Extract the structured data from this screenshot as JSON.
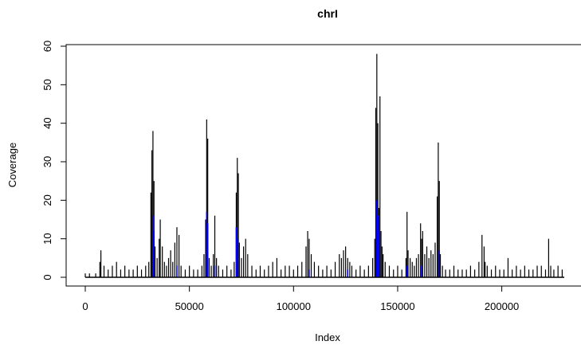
{
  "chart_data": {
    "type": "line",
    "title": "chrI",
    "xlabel": "Index",
    "ylabel": "Coverage",
    "xlim": [
      0,
      230000
    ],
    "ylim": [
      0,
      60
    ],
    "x_ticks": [
      0,
      50000,
      100000,
      150000,
      200000
    ],
    "y_ticks": [
      0,
      10,
      20,
      30,
      40,
      50,
      60
    ],
    "x_tick_labels": [
      "0",
      "50000",
      "100000",
      "150000",
      "200000"
    ],
    "y_tick_labels": [
      "0",
      "10",
      "20",
      "30",
      "40",
      "50",
      "60"
    ],
    "grid": false,
    "series": [
      {
        "color": "#000000",
        "style": "vertical-spikes",
        "x": [
          0,
          2000,
          5000,
          7000,
          7500,
          9000,
          11000,
          13000,
          15000,
          17000,
          19000,
          21000,
          23000,
          25000,
          27000,
          29000,
          30500,
          31500,
          32000,
          32500,
          33000,
          33500,
          34500,
          35500,
          36000,
          37000,
          38000,
          39000,
          40000,
          41000,
          42000,
          43000,
          44000,
          45000,
          46000,
          48000,
          50000,
          52000,
          54000,
          56000,
          57000,
          57800,
          58300,
          58800,
          59500,
          60500,
          61500,
          62200,
          63000,
          64000,
          66000,
          68000,
          70000,
          71500,
          72500,
          73000,
          73500,
          74000,
          75000,
          76000,
          77000,
          78000,
          80000,
          82000,
          84000,
          86000,
          88000,
          90000,
          92000,
          94000,
          96000,
          98000,
          100000,
          102000,
          104000,
          106000,
          106800,
          107500,
          108500,
          110000,
          112000,
          114000,
          116000,
          118000,
          120000,
          122000,
          123000,
          124000,
          125000,
          126000,
          127000,
          128000,
          130000,
          132000,
          134000,
          136000,
          138000,
          139000,
          139500,
          140000,
          140500,
          141000,
          141500,
          142000,
          142500,
          143000,
          144000,
          146000,
          148000,
          150000,
          152000,
          154000,
          154500,
          155000,
          156000,
          157000,
          158000,
          159000,
          160000,
          161000,
          161500,
          162000,
          163000,
          164000,
          165000,
          166000,
          167000,
          168000,
          169000,
          169500,
          170000,
          170500,
          171500,
          173000,
          175000,
          177000,
          179000,
          181000,
          183000,
          185000,
          187000,
          189000,
          190500,
          191500,
          192000,
          193000,
          195000,
          197000,
          199000,
          201000,
          203000,
          205000,
          207000,
          209000,
          211000,
          213000,
          215000,
          217000,
          219000,
          221000,
          222500,
          223500,
          225000,
          227000,
          229000
        ],
        "values": [
          1,
          1,
          1,
          4,
          7,
          3,
          2,
          3,
          4,
          2,
          3,
          2,
          2,
          3,
          2,
          3,
          4,
          22,
          33,
          38,
          25,
          8,
          5,
          10,
          15,
          8,
          4,
          3,
          5,
          7,
          4,
          9,
          13,
          11,
          3,
          2,
          3,
          2,
          2,
          3,
          6,
          15,
          41,
          36,
          5,
          3,
          6,
          16,
          5,
          3,
          2,
          3,
          2,
          4,
          22,
          31,
          27,
          9,
          5,
          8,
          10,
          6,
          3,
          2,
          3,
          2,
          3,
          4,
          5,
          2,
          3,
          3,
          2,
          3,
          4,
          8,
          12,
          10,
          6,
          4,
          3,
          2,
          3,
          2,
          4,
          6,
          5,
          7,
          8,
          5,
          4,
          3,
          2,
          3,
          2,
          3,
          5,
          10,
          44,
          58,
          40,
          18,
          47,
          12,
          8,
          6,
          4,
          3,
          2,
          3,
          2,
          5,
          17,
          7,
          5,
          4,
          3,
          5,
          6,
          14,
          10,
          12,
          6,
          8,
          5,
          7,
          6,
          9,
          21,
          35,
          25,
          6,
          3,
          2,
          2,
          3,
          2,
          2,
          2,
          3,
          2,
          4,
          11,
          8,
          4,
          3,
          2,
          3,
          2,
          2,
          5,
          2,
          3,
          2,
          3,
          2,
          2,
          3,
          3,
          2,
          10,
          3,
          2,
          3,
          2
        ]
      },
      {
        "color": "#0000ff",
        "style": "vertical-spikes",
        "x": [
          32500,
          33000,
          44000,
          58300,
          58800,
          62200,
          72500,
          73000,
          107500,
          126000,
          140000,
          140500,
          141000,
          154500,
          161500,
          170000
        ],
        "values": [
          16,
          12,
          3,
          17,
          14,
          3,
          13,
          10,
          2,
          2,
          20,
          16,
          12,
          3,
          3,
          7
        ]
      }
    ]
  }
}
